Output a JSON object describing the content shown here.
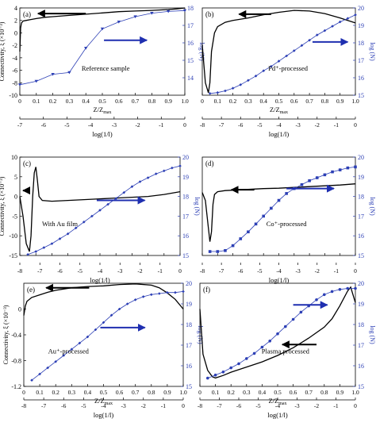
{
  "figure": {
    "shared_xlabel_main": "Z/Z",
    "shared_xlabel_sub": "max",
    "shared_log_label": "log(1/l)",
    "left_ylabel": "Connectivity, ξ (×10⁻³)",
    "right_ylabel": "log (N)",
    "colors": {
      "curve": "#000000",
      "points": "#2c3fb5",
      "arrow_blue": "#1f2fb0"
    }
  },
  "chart_data": [
    {
      "panel": "(a)",
      "type": "line",
      "annotation": "Reference sample",
      "xlim": [
        0,
        1
      ],
      "xticks": [
        "0",
        "0.1",
        "0.2",
        "0.3",
        "0.4",
        "0.5",
        "0.6",
        "0.7",
        "0.8",
        "0.9",
        "1.0"
      ],
      "ylim_left": [
        -10,
        4
      ],
      "yticks_left": [
        "-10",
        "-8",
        "-6",
        "-4",
        "-2",
        "0",
        "2",
        "4"
      ],
      "ylim_right": [
        13,
        18
      ],
      "yticks_right": [
        "14",
        "15",
        "16",
        "17",
        "18"
      ],
      "log_axis_ticks": [
        "-7",
        "-6",
        "-5",
        "-4",
        "-3",
        "-2",
        "-1",
        "0"
      ],
      "connectivity_curve": {
        "x": [
          0.0,
          0.005,
          0.01,
          0.02,
          0.04,
          0.06,
          0.1,
          0.15,
          0.2,
          0.3,
          0.4,
          0.5,
          0.6,
          0.7,
          0.8,
          0.9,
          0.95,
          1.0
        ],
        "y": [
          -3.0,
          0.8,
          1.6,
          1.9,
          2.0,
          2.1,
          2.3,
          2.5,
          2.6,
          2.8,
          3.0,
          3.2,
          3.4,
          3.5,
          3.6,
          3.75,
          3.85,
          4.0
        ]
      },
      "log_n_points": {
        "x": [
          0.0,
          0.1,
          0.2,
          0.3,
          0.4,
          0.5,
          0.6,
          0.7,
          0.8,
          0.9,
          1.0
        ],
        "y": [
          13.6,
          13.8,
          14.2,
          14.3,
          15.7,
          16.8,
          17.2,
          17.5,
          17.7,
          17.8,
          17.85
        ]
      },
      "arrow_black": {
        "direction": "left",
        "x": [
          0.11,
          0.4
        ],
        "y_left": 3.1
      },
      "arrow_blue": {
        "direction": "right",
        "x": [
          0.51,
          0.77
        ],
        "y_right": 16.15
      }
    },
    {
      "panel": "(b)",
      "type": "line",
      "annotation": "Pd⁺-processed",
      "xlim": [
        0,
        1
      ],
      "xticks": [
        "0",
        "0.1",
        "0.2",
        "0.3",
        "0.4",
        "0.5",
        "0.6",
        "0.7",
        "0.8",
        "0.9",
        "1.0"
      ],
      "ylim_left": [
        -10,
        4
      ],
      "ylim_right": [
        15,
        20
      ],
      "yticks_right": [
        "15",
        "16",
        "17",
        "18",
        "19",
        "20"
      ],
      "log_axis_ticks": [
        "-8",
        "-7",
        "-6",
        "-5",
        "-4",
        "-3",
        "-2",
        "-1",
        "0"
      ],
      "connectivity_curve": {
        "x": [
          0.0,
          0.02,
          0.04,
          0.05,
          0.06,
          0.08,
          0.1,
          0.15,
          0.2,
          0.3,
          0.4,
          0.5,
          0.6,
          0.7,
          0.8,
          0.9,
          1.0
        ],
        "y": [
          -2.0,
          -8.0,
          -9.6,
          -8.0,
          -3.0,
          0.0,
          1.0,
          1.7,
          2.0,
          2.4,
          2.9,
          3.3,
          3.6,
          3.5,
          3.1,
          2.4,
          1.6
        ]
      },
      "log_n_points": {
        "x": [
          0.05,
          0.1,
          0.15,
          0.2,
          0.25,
          0.3,
          0.35,
          0.4,
          0.45,
          0.5,
          0.55,
          0.6,
          0.65,
          0.7,
          0.75,
          0.8,
          0.85,
          0.9,
          0.95,
          1.0
        ],
        "y": [
          15.1,
          15.15,
          15.25,
          15.4,
          15.6,
          15.85,
          16.1,
          16.4,
          16.65,
          16.95,
          17.25,
          17.55,
          17.85,
          18.15,
          18.45,
          18.7,
          18.95,
          19.2,
          19.4,
          19.6
        ]
      },
      "arrow_black": {
        "direction": "left",
        "x": [
          0.24,
          0.45
        ],
        "y_left": 3.0
      },
      "arrow_blue": {
        "direction": "right",
        "x": [
          0.72,
          0.95
        ],
        "y_right": 18.05
      }
    },
    {
      "panel": "(c)",
      "type": "line",
      "annotation": "With Au film",
      "xlim": [
        0,
        1
      ],
      "xticks": [
        "0",
        "0.1",
        "0.2",
        "0.3",
        "0.4",
        "0.5",
        "0.6",
        "0.7",
        "0.8",
        "0.9",
        "1.0"
      ],
      "ylim_left": [
        -15,
        10
      ],
      "yticks_left": [
        "-15",
        "-10",
        "-5",
        "0",
        "5",
        "10"
      ],
      "ylim_right": [
        15,
        20
      ],
      "yticks_right": [
        "15",
        "16",
        "17",
        "18",
        "19",
        "20"
      ],
      "log_axis_ticks": [
        "-8",
        "-7",
        "-6",
        "-5",
        "-4",
        "-3",
        "-2",
        "-1",
        "0"
      ],
      "connectivity_curve": {
        "x": [
          0.0,
          0.02,
          0.04,
          0.06,
          0.07,
          0.08,
          0.09,
          0.1,
          0.11,
          0.12,
          0.14,
          0.2,
          0.3,
          0.4,
          0.5,
          0.6,
          0.7,
          0.8,
          0.9,
          1.0
        ],
        "y": [
          0.0,
          -5.0,
          -12.0,
          -14.0,
          -10.0,
          0.0,
          6.0,
          7.5,
          4.0,
          0.0,
          -1.0,
          -1.2,
          -1.0,
          -0.8,
          -0.6,
          -0.4,
          -0.2,
          0.0,
          0.5,
          1.2
        ]
      },
      "log_n_points": {
        "x": [
          0.05,
          0.1,
          0.15,
          0.2,
          0.25,
          0.3,
          0.35,
          0.4,
          0.45,
          0.5,
          0.55,
          0.6,
          0.65,
          0.7,
          0.75,
          0.8,
          0.85,
          0.9,
          0.95,
          1.0
        ],
        "y": [
          15.05,
          15.2,
          15.4,
          15.6,
          15.85,
          16.1,
          16.4,
          16.7,
          17.0,
          17.3,
          17.6,
          17.9,
          18.2,
          18.5,
          18.75,
          18.95,
          19.15,
          19.3,
          19.45,
          19.55
        ]
      },
      "arrow_black": {
        "direction": "left",
        "x": [
          0.02,
          0.06
        ],
        "y_left": 1.5
      },
      "arrow_blue": {
        "direction": "right",
        "x": [
          0.48,
          0.78
        ],
        "y_right": 17.8
      }
    },
    {
      "panel": "(d)",
      "type": "line",
      "annotation": "Co⁺-processed",
      "xlim": [
        0,
        1
      ],
      "xticks": [
        "0",
        "0.1",
        "0.2",
        "0.3",
        "0.4",
        "0.5",
        "0.6",
        "0.7",
        "0.8",
        "0.9",
        "1.0"
      ],
      "ylim_left": [
        -15,
        10
      ],
      "ylim_right": [
        15,
        20
      ],
      "yticks_right": [
        "15",
        "16",
        "17",
        "18",
        "19",
        "20"
      ],
      "log_axis_ticks": [
        "-8",
        "-7",
        "-6",
        "-5",
        "-4",
        "-3",
        "-2",
        "-1",
        "0"
      ],
      "connectivity_curve": {
        "x": [
          0.0,
          0.02,
          0.04,
          0.05,
          0.06,
          0.07,
          0.08,
          0.1,
          0.15,
          0.2,
          0.3,
          0.4,
          0.5,
          0.6,
          0.7,
          0.8,
          0.9,
          1.0
        ],
        "y": [
          1.0,
          -1.0,
          -8.0,
          -11.5,
          -9.0,
          -2.0,
          0.5,
          1.2,
          1.5,
          1.6,
          1.8,
          2.0,
          2.1,
          2.3,
          2.5,
          2.7,
          2.9,
          3.2
        ]
      },
      "log_n_points": {
        "x": [
          0.05,
          0.1,
          0.15,
          0.2,
          0.25,
          0.3,
          0.35,
          0.4,
          0.45,
          0.5,
          0.55,
          0.6,
          0.65,
          0.7,
          0.75,
          0.8,
          0.85,
          0.9,
          0.95,
          1.0
        ],
        "y": [
          15.2,
          15.2,
          15.25,
          15.5,
          15.85,
          16.2,
          16.6,
          17.0,
          17.4,
          17.8,
          18.15,
          18.4,
          18.6,
          18.8,
          18.95,
          19.1,
          19.25,
          19.35,
          19.45,
          19.5
        ]
      },
      "arrow_black": {
        "direction": "left",
        "x": [
          0.19,
          0.34
        ],
        "y_left": 1.7
      },
      "arrow_blue": {
        "direction": "right",
        "x": [
          0.55,
          0.86
        ],
        "y_right": 18.4
      }
    },
    {
      "panel": "(e)",
      "type": "line",
      "annotation": "Au⁺-processed",
      "xlim": [
        0,
        1
      ],
      "xticks": [
        "0",
        "0.1",
        "0.2",
        "0.3",
        "0.4",
        "0.5",
        "0.6",
        "0.7",
        "0.8",
        "0.9",
        "1.0"
      ],
      "ylim_left": [
        -1.2,
        0.4
      ],
      "yticks_left": [
        "-1.2",
        "-0.8",
        "-0.4",
        "0"
      ],
      "ylim_right": [
        15,
        20
      ],
      "yticks_right": [
        "15",
        "16",
        "17",
        "18",
        "19",
        "20"
      ],
      "log_axis_ticks": [
        "-8",
        "-7",
        "-6",
        "-5",
        "-4",
        "-3",
        "-2",
        "-1",
        "0"
      ],
      "connectivity_curve": {
        "x": [
          0.0,
          0.01,
          0.02,
          0.05,
          0.1,
          0.15,
          0.2,
          0.3,
          0.4,
          0.5,
          0.6,
          0.7,
          0.8,
          0.85,
          0.9,
          0.95,
          1.0
        ],
        "y": [
          -0.1,
          0.05,
          0.12,
          0.18,
          0.22,
          0.26,
          0.29,
          0.33,
          0.35,
          0.36,
          0.38,
          0.39,
          0.37,
          0.33,
          0.25,
          0.15,
          0.0
        ]
      },
      "log_n_points": {
        "x": [
          0.05,
          0.1,
          0.15,
          0.2,
          0.25,
          0.3,
          0.35,
          0.4,
          0.45,
          0.5,
          0.55,
          0.6,
          0.65,
          0.7,
          0.75,
          0.8,
          0.85,
          0.9,
          0.95,
          1.0
        ],
        "y": [
          15.3,
          15.6,
          15.9,
          16.2,
          16.5,
          16.8,
          17.1,
          17.4,
          17.75,
          18.1,
          18.45,
          18.75,
          19.0,
          19.2,
          19.35,
          19.45,
          19.5,
          19.55,
          19.55,
          19.6
        ]
      },
      "arrow_black": {
        "direction": "left",
        "x": [
          0.14,
          0.41
        ],
        "y_left": 0.33
      },
      "arrow_blue": {
        "direction": "right",
        "x": [
          0.48,
          0.76
        ],
        "y_right": 17.85
      }
    },
    {
      "panel": "(f)",
      "type": "line",
      "annotation": "Plasma processed",
      "xlim": [
        0,
        1
      ],
      "xticks": [
        "0",
        "0.1",
        "0.2",
        "0.3",
        "0.4",
        "0.5",
        "0.6",
        "0.7",
        "0.8",
        "0.9",
        "1.0"
      ],
      "ylim_left": [
        -1.2,
        0.4
      ],
      "ylim_right": [
        15,
        20
      ],
      "yticks_right": [
        "15",
        "16",
        "17",
        "18",
        "19",
        "20"
      ],
      "log_axis_ticks": [
        "-8",
        "-7",
        "-6",
        "-5",
        "-4",
        "-3",
        "-2",
        "-1",
        "0"
      ],
      "connectivity_curve": {
        "x": [
          0.0,
          0.02,
          0.05,
          0.08,
          0.1,
          0.15,
          0.2,
          0.3,
          0.4,
          0.5,
          0.6,
          0.7,
          0.8,
          0.85,
          0.9,
          0.95,
          0.97,
          1.0
        ],
        "y": [
          0.0,
          -0.7,
          -0.95,
          -1.05,
          -1.07,
          -1.03,
          -0.98,
          -0.9,
          -0.82,
          -0.72,
          -0.6,
          -0.45,
          -0.28,
          -0.15,
          0.05,
          0.28,
          0.34,
          0.1
        ]
      },
      "log_n_points": {
        "x": [
          0.05,
          0.1,
          0.15,
          0.2,
          0.25,
          0.3,
          0.35,
          0.4,
          0.45,
          0.5,
          0.55,
          0.6,
          0.65,
          0.7,
          0.75,
          0.8,
          0.85,
          0.9,
          0.95,
          1.0
        ],
        "y": [
          15.4,
          15.55,
          15.7,
          15.9,
          16.1,
          16.35,
          16.6,
          16.9,
          17.2,
          17.55,
          17.9,
          18.25,
          18.6,
          18.9,
          19.2,
          19.45,
          19.6,
          19.7,
          19.75,
          19.75
        ]
      },
      "arrow_black": {
        "direction": "left",
        "x": [
          0.53,
          0.75
        ],
        "y_left": -0.55
      },
      "arrow_blue": {
        "direction": "right",
        "x": [
          0.6,
          0.82
        ],
        "y_right": 18.95
      }
    }
  ]
}
